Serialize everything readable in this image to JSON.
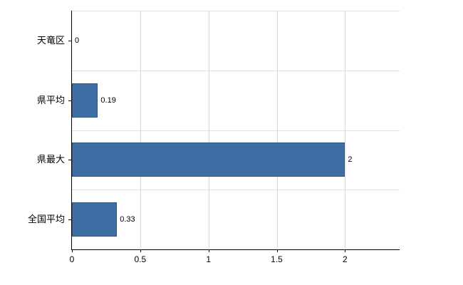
{
  "chart_data": {
    "type": "bar",
    "orientation": "horizontal",
    "title": "",
    "xlabel": "",
    "ylabel": "",
    "categories": [
      "天竜区",
      "県平均",
      "県最大",
      "全国平均"
    ],
    "values": [
      0,
      0.19,
      2,
      0.33
    ],
    "value_labels": [
      "0",
      "0.19",
      "2",
      "0.33"
    ],
    "xlim": [
      0,
      2.4
    ],
    "x_ticks": [
      0,
      0.5,
      1,
      1.5,
      2
    ],
    "x_tick_labels": [
      "0",
      "0.5",
      "1",
      "1.5",
      "2"
    ],
    "grid": true,
    "legend": false,
    "bar_color": "#3f6ea5",
    "bar_border_color": "#2f5680",
    "grid_color": "#d9d9d9",
    "axis_color": "#000000",
    "background_color": "#ffffff"
  }
}
